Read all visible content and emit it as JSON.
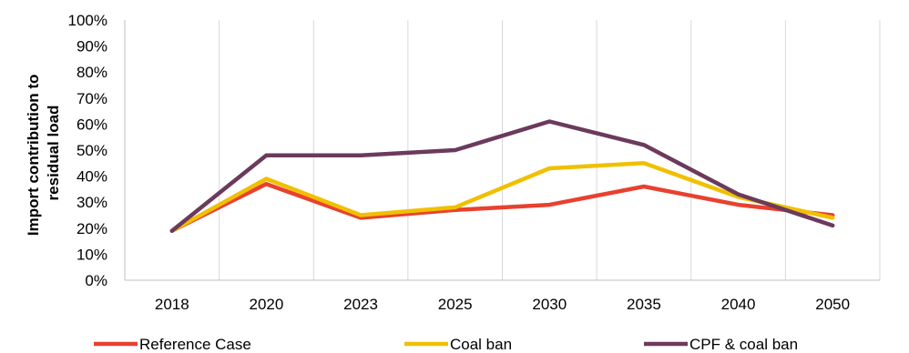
{
  "chart_data": {
    "type": "line",
    "categories": [
      "2018",
      "2020",
      "2023",
      "2025",
      "2030",
      "2035",
      "2040",
      "2050"
    ],
    "ylabel": "Import contribution to residual load",
    "ylabel_lines": [
      "Import contribution to",
      "residual load"
    ],
    "ylim": [
      0,
      100
    ],
    "yticks": [
      "0%",
      "10%",
      "20%",
      "30%",
      "40%",
      "50%",
      "60%",
      "70%",
      "80%",
      "90%",
      "100%"
    ],
    "grid": "vertical",
    "legend_position": "bottom",
    "series": [
      {
        "name": "Reference Case",
        "color": "#e8412f",
        "values": [
          19,
          37,
          24,
          27,
          29,
          36,
          29,
          25
        ]
      },
      {
        "name": "Coal ban",
        "color": "#f0c000",
        "values": [
          19,
          39,
          25,
          28,
          43,
          45,
          32,
          24
        ]
      },
      {
        "name": "CPF & coal ban",
        "color": "#6b3a5c",
        "values": [
          19,
          48,
          48,
          50,
          61,
          52,
          33,
          21
        ]
      }
    ]
  }
}
